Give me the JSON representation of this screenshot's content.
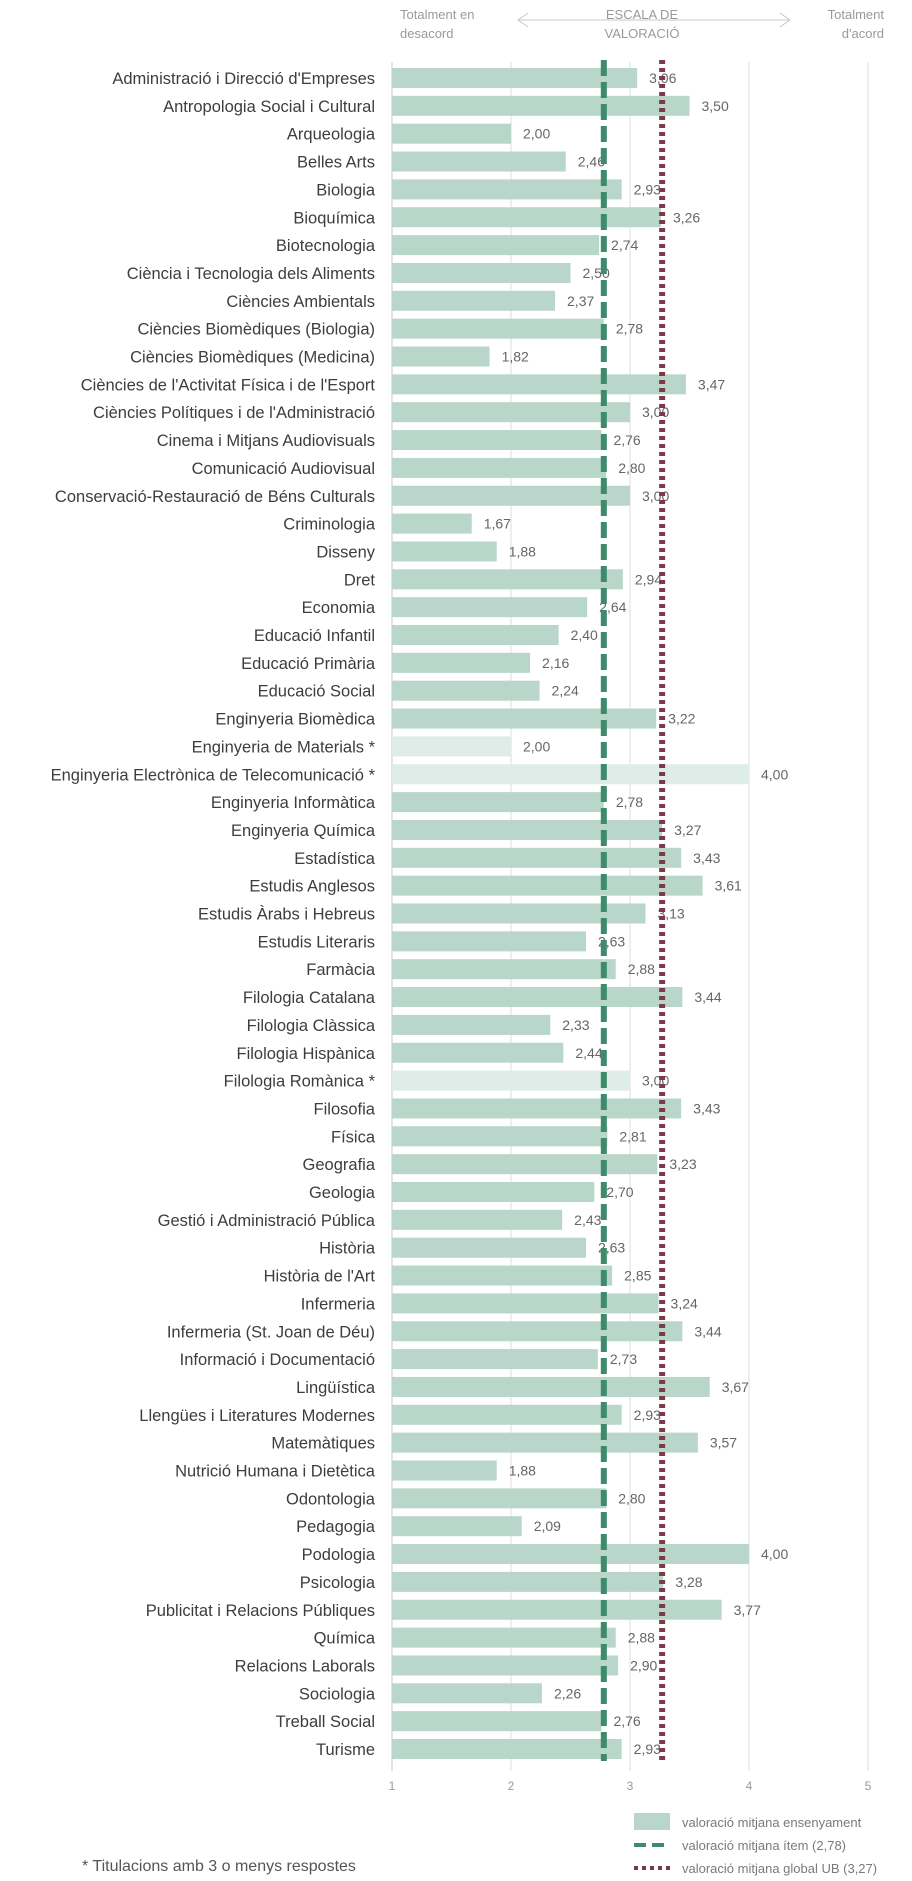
{
  "chart_data": {
    "type": "bar",
    "orientation": "horizontal",
    "scale_header": {
      "left": [
        "Totalment en",
        "desacord"
      ],
      "center": [
        "ESCALA DE",
        "VALORACIÓ"
      ],
      "right": [
        "Totalment",
        "d'acord"
      ]
    },
    "x_ticks": [
      "1",
      "2",
      "3",
      "4",
      "5"
    ],
    "xlim": [
      1,
      5
    ],
    "grid": "vertical",
    "categories": [
      "Administració i Direcció d'Empreses",
      "Antropologia Social i Cultural",
      "Arqueologia",
      "Belles Arts",
      "Biologia",
      "Bioquímica",
      "Biotecnologia",
      "Ciència i Tecnologia dels Aliments",
      "Ciències Ambientals",
      "Ciències Biomèdiques (Biologia)",
      "Ciències Biomèdiques (Medicina)",
      "Ciències de l'Activitat Física i de l'Esport",
      "Ciències Polítiques i de l'Administració",
      "Cinema i Mitjans Audiovisuals",
      "Comunicació Audiovisual",
      "Conservació-Restauració de Béns Culturals",
      "Criminologia",
      "Disseny",
      "Dret",
      "Economia",
      "Educació Infantil",
      "Educació Primària",
      "Educació Social",
      "Enginyeria Biomèdica",
      "Enginyeria de Materials *",
      "Enginyeria Electrònica de Telecomunicació *",
      "Enginyeria Informàtica",
      "Enginyeria Química",
      "Estadística",
      "Estudis Anglesos",
      "Estudis Àrabs i Hebreus",
      "Estudis Literaris",
      "Farmàcia",
      "Filologia Catalana",
      "Filologia Clàssica",
      "Filologia Hispànica",
      "Filologia Romànica *",
      "Filosofia",
      "Física",
      "Geografia",
      "Geologia",
      "Gestió i Administració Pública",
      "Història",
      "Història de l'Art",
      "Infermeria",
      "Infermeria (St. Joan de Déu)",
      "Informació i Documentació",
      "Lingüística",
      "Llengües i Literatures Modernes",
      "Matemàtiques",
      "Nutrició Humana i Dietètica",
      "Odontologia",
      "Pedagogia",
      "Podologia",
      "Psicologia",
      "Publicitat i Relacions Públiques",
      "Química",
      "Relacions Laborals",
      "Sociologia",
      "Treball Social",
      "Turisme"
    ],
    "values": [
      3.06,
      3.5,
      2.0,
      2.46,
      2.93,
      3.26,
      2.74,
      2.5,
      2.37,
      2.78,
      1.82,
      3.47,
      3.0,
      2.76,
      2.8,
      3.0,
      1.67,
      1.88,
      2.94,
      2.64,
      2.4,
      2.16,
      2.24,
      3.22,
      2.0,
      4.0,
      2.78,
      3.27,
      3.43,
      3.61,
      3.13,
      2.63,
      2.88,
      3.44,
      2.33,
      2.44,
      3.0,
      3.43,
      2.81,
      3.23,
      2.7,
      2.43,
      2.63,
      2.85,
      3.24,
      3.44,
      2.73,
      3.67,
      2.93,
      3.57,
      1.88,
      2.8,
      2.09,
      4.0,
      3.28,
      3.77,
      2.88,
      2.9,
      2.26,
      2.76,
      2.93
    ],
    "value_labels": [
      "3,06",
      "3,50",
      "2,00",
      "2,46",
      "2,93",
      "3,26",
      "2,74",
      "2,50",
      "2,37",
      "2,78",
      "1,82",
      "3,47",
      "3,00",
      "2,76",
      "2,80",
      "3,00",
      "1,67",
      "1,88",
      "2,94",
      "2,64",
      "2,40",
      "2,16",
      "2,24",
      "3,22",
      "2,00",
      "4,00",
      "2,78",
      "3,27",
      "3,43",
      "3,61",
      "3,13",
      "2,63",
      "2,88",
      "3,44",
      "2,33",
      "2,44",
      "3,00",
      "3,43",
      "2,81",
      "3,23",
      "2,70",
      "2,43",
      "2,63",
      "2,85",
      "3,24",
      "3,44",
      "2,73",
      "3,67",
      "2,93",
      "3,57",
      "1,88",
      "2,80",
      "2,09",
      "4,00",
      "3,28",
      "3,77",
      "2,88",
      "2,90",
      "2,26",
      "2,76",
      "2,93"
    ],
    "low_response_indices": [
      24,
      25,
      36
    ],
    "reference_lines": [
      {
        "name": "valoració mitjana ítem (2,78)",
        "value": 2.78,
        "style": "dashed",
        "color": "#3d8a6c"
      },
      {
        "name": "valoració mitjana global UB (3,27)",
        "value": 3.27,
        "style": "dotted",
        "color": "#7b3a4a"
      }
    ],
    "series_name": "valoració mitjana ensenyament",
    "colors": {
      "bar": "#b9d6cb",
      "bar_light": "#deede7",
      "grid": "#dcdcdc"
    },
    "legend_position": "bottom-right"
  },
  "footnote": "* Titulacions amb 3 o menys respostes"
}
